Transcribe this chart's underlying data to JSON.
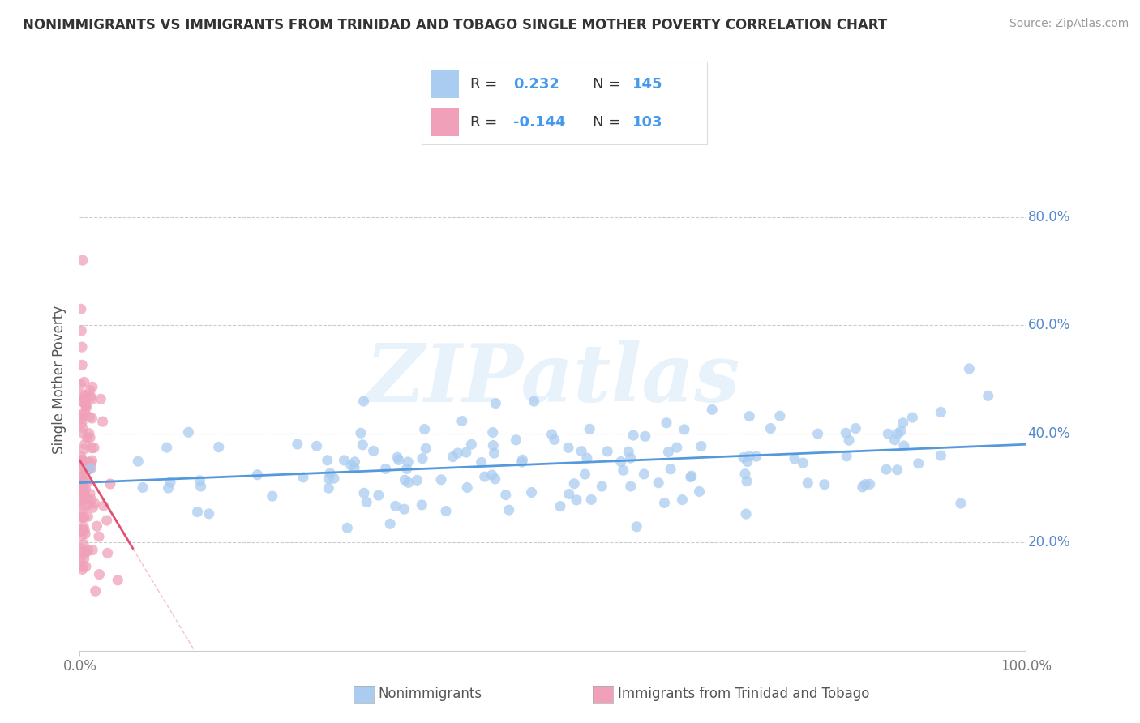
{
  "title": "NONIMMIGRANTS VS IMMIGRANTS FROM TRINIDAD AND TOBAGO SINGLE MOTHER POVERTY CORRELATION CHART",
  "source": "Source: ZipAtlas.com",
  "xlabel": "",
  "ylabel": "Single Mother Poverty",
  "xlim": [
    0,
    1
  ],
  "ylim": [
    0,
    1
  ],
  "x_ticks": [
    0,
    1.0
  ],
  "x_tick_labels": [
    "0.0%",
    "100.0%"
  ],
  "y_ticks": [
    0.2,
    0.4,
    0.6,
    0.8
  ],
  "y_tick_labels": [
    "20.0%",
    "40.0%",
    "60.0%",
    "80.0%"
  ],
  "nonimmigrant_R": 0.232,
  "nonimmigrant_N": 145,
  "immigrant_R": -0.144,
  "immigrant_N": 103,
  "nonimmigrant_color": "#aaccf0",
  "immigrant_color": "#f0a0b8",
  "nonimmigrant_line_color": "#5599dd",
  "immigrant_line_color": "#e05070",
  "legend_nonimmigrant_label": "Nonimmigrants",
  "legend_immigrant_label": "Immigrants from Trinidad and Tobago",
  "watermark_text": "ZIPatlas",
  "background_color": "#ffffff",
  "grid_color": "#cccccc",
  "nonimm_line_start_y": 0.305,
  "nonimm_line_end_y": 0.365,
  "imm_line_start_y": 0.335,
  "imm_line_end_x": 0.055,
  "imm_line_end_y": 0.305
}
